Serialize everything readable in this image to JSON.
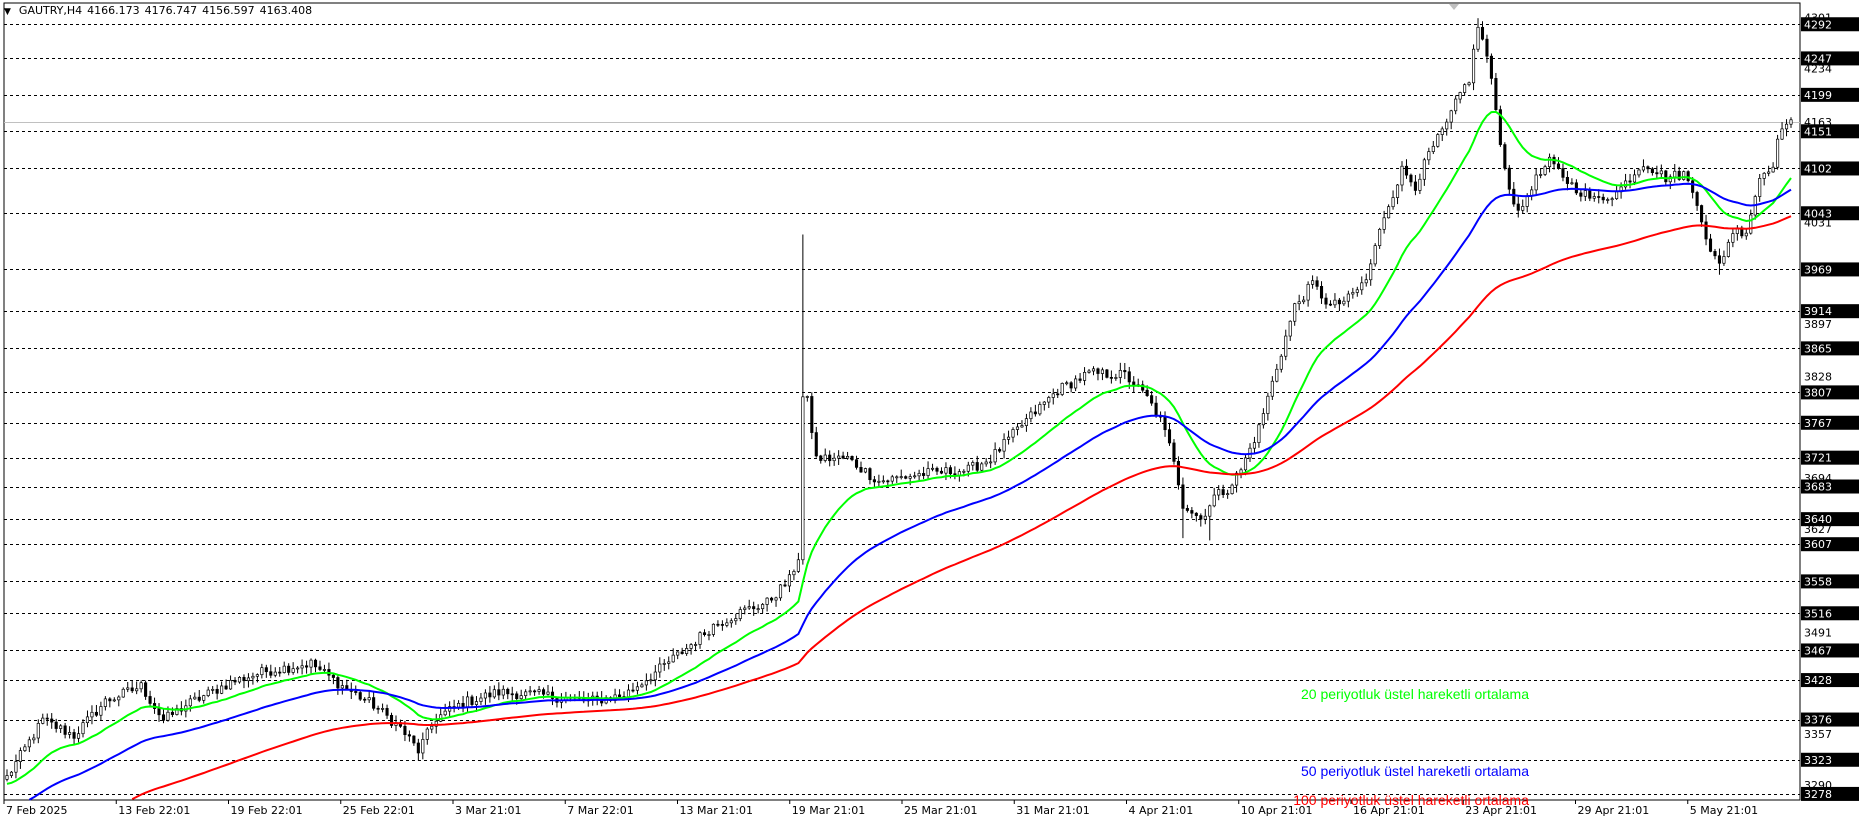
{
  "header": {
    "symbol": "GAUTRY,H4",
    "open": "4166.173",
    "high": "4176.747",
    "low": "4156.597",
    "close": "4163.408"
  },
  "colors": {
    "background": "#ffffff",
    "candle": "#000000",
    "grid": "#000000",
    "ema20": "#00ff00",
    "ema50": "#0000ff",
    "ema100": "#ff0000"
  },
  "chart_data": {
    "type": "candlestick",
    "timeframe": "H4",
    "grid": "dashed horizontal",
    "y_range": [
      3270,
      4320
    ],
    "price_axis_labels": [
      {
        "text": "4301",
        "value": 4301,
        "boxed": false
      },
      {
        "text": "4292",
        "value": 4292,
        "boxed": true
      },
      {
        "text": "4247",
        "value": 4247,
        "boxed": true
      },
      {
        "text": "4234",
        "value": 4234,
        "boxed": false
      },
      {
        "text": "4199",
        "value": 4199,
        "boxed": true
      },
      {
        "text": "4163",
        "value": 4163,
        "boxed": false
      },
      {
        "text": "4151",
        "value": 4151,
        "boxed": true
      },
      {
        "text": "4102",
        "value": 4102,
        "boxed": true
      },
      {
        "text": "4043",
        "value": 4043,
        "boxed": true
      },
      {
        "text": "4031",
        "value": 4031,
        "boxed": false
      },
      {
        "text": "3969",
        "value": 3969,
        "boxed": true
      },
      {
        "text": "3914",
        "value": 3914,
        "boxed": true
      },
      {
        "text": "3897",
        "value": 3897,
        "boxed": false
      },
      {
        "text": "3865",
        "value": 3865,
        "boxed": true
      },
      {
        "text": "3828",
        "value": 3828,
        "boxed": false
      },
      {
        "text": "3807",
        "value": 3807,
        "boxed": true
      },
      {
        "text": "3767",
        "value": 3767,
        "boxed": true
      },
      {
        "text": "3721",
        "value": 3721,
        "boxed": true
      },
      {
        "text": "3694",
        "value": 3694,
        "boxed": false
      },
      {
        "text": "3683",
        "value": 3683,
        "boxed": true
      },
      {
        "text": "3640",
        "value": 3640,
        "boxed": true
      },
      {
        "text": "3627",
        "value": 3627,
        "boxed": false
      },
      {
        "text": "3607",
        "value": 3607,
        "boxed": true
      },
      {
        "text": "3558",
        "value": 3558,
        "boxed": true
      },
      {
        "text": "3516",
        "value": 3516,
        "boxed": true
      },
      {
        "text": "3491",
        "value": 3491,
        "boxed": false
      },
      {
        "text": "3467",
        "value": 3467,
        "boxed": true
      },
      {
        "text": "3428",
        "value": 3428,
        "boxed": true
      },
      {
        "text": "3376",
        "value": 3376,
        "boxed": true
      },
      {
        "text": "3357",
        "value": 3357,
        "boxed": false
      },
      {
        "text": "3323",
        "value": 3323,
        "boxed": true
      },
      {
        "text": "3290",
        "value": 3290,
        "boxed": false
      },
      {
        "text": "3278",
        "value": 3278,
        "boxed": true
      }
    ],
    "level_lines": [
      4292,
      4247,
      4199,
      4151,
      4102,
      4043,
      3969,
      3914,
      3865,
      3807,
      3767,
      3721,
      3683,
      3640,
      3607,
      3558,
      3516,
      3467,
      3428,
      3376,
      3323,
      3278
    ],
    "current_price_line": 4163,
    "x_tick_labels": [
      "7 Feb 2025",
      "13 Feb 22:01",
      "19 Feb 22:01",
      "25 Feb 22:01",
      "3 Mar 21:01",
      "7 Mar 22:01",
      "13 Mar 21:01",
      "19 Mar 21:01",
      "25 Mar 21:01",
      "31 Mar 21:01",
      "4 Apr 21:01",
      "10 Apr 21:01",
      "16 Apr 21:01",
      "23 Apr 21:01",
      "29 Apr 21:01",
      "5 May 21:01"
    ],
    "price_path_anchors": [
      [
        0,
        3300
      ],
      [
        8,
        3375
      ],
      [
        15,
        3355
      ],
      [
        22,
        3400
      ],
      [
        30,
        3420
      ],
      [
        35,
        3375
      ],
      [
        40,
        3395
      ],
      [
        50,
        3425
      ],
      [
        58,
        3440
      ],
      [
        68,
        3450
      ],
      [
        75,
        3420
      ],
      [
        82,
        3395
      ],
      [
        88,
        3365
      ],
      [
        92,
        3335
      ],
      [
        96,
        3378
      ],
      [
        102,
        3398
      ],
      [
        110,
        3412
      ],
      [
        120,
        3408
      ],
      [
        130,
        3400
      ],
      [
        138,
        3408
      ],
      [
        145,
        3438
      ],
      [
        152,
        3470
      ],
      [
        158,
        3500
      ],
      [
        165,
        3520
      ],
      [
        170,
        3530
      ],
      [
        175,
        3560
      ],
      [
        177,
        3590
      ],
      [
        178,
        3800
      ],
      [
        179,
        3795
      ],
      [
        181,
        3720
      ],
      [
        188,
        3720
      ],
      [
        195,
        3690
      ],
      [
        205,
        3700
      ],
      [
        215,
        3705
      ],
      [
        220,
        3720
      ],
      [
        228,
        3770
      ],
      [
        235,
        3810
      ],
      [
        242,
        3832
      ],
      [
        250,
        3830
      ],
      [
        255,
        3800
      ],
      [
        258,
        3770
      ],
      [
        261,
        3720
      ],
      [
        263,
        3660
      ],
      [
        267,
        3640
      ],
      [
        270,
        3670
      ],
      [
        273,
        3680
      ],
      [
        276,
        3705
      ],
      [
        280,
        3760
      ],
      [
        284,
        3840
      ],
      [
        288,
        3920
      ],
      [
        292,
        3950
      ],
      [
        296,
        3920
      ],
      [
        300,
        3930
      ],
      [
        304,
        3955
      ],
      [
        308,
        4040
      ],
      [
        312,
        4100
      ],
      [
        315,
        4080
      ],
      [
        318,
        4120
      ],
      [
        322,
        4160
      ],
      [
        325,
        4200
      ],
      [
        327,
        4220
      ],
      [
        329,
        4290
      ],
      [
        331,
        4250
      ],
      [
        333,
        4180
      ],
      [
        335,
        4100
      ],
      [
        338,
        4040
      ],
      [
        341,
        4080
      ],
      [
        345,
        4110
      ],
      [
        350,
        4080
      ],
      [
        355,
        4060
      ],
      [
        360,
        4070
      ],
      [
        366,
        4110
      ],
      [
        371,
        4090
      ],
      [
        375,
        4095
      ],
      [
        378,
        4060
      ],
      [
        381,
        3990
      ],
      [
        383,
        3975
      ],
      [
        386,
        4020
      ],
      [
        389,
        4020
      ],
      [
        392,
        4090
      ],
      [
        395,
        4110
      ],
      [
        397,
        4160
      ]
    ],
    "series": [
      {
        "name": "20 periyotluk üstel hareketli ortalama",
        "type": "ema",
        "period": 20,
        "color": "#00ff00"
      },
      {
        "name": "50 periyotluk üstel hareketli ortalama",
        "type": "ema",
        "period": 50,
        "color": "#0000ff"
      },
      {
        "name": "100 periyotluk üstel hareketli ortalama",
        "type": "ema",
        "period": 100,
        "color": "#ff0000"
      }
    ]
  },
  "legend": {
    "ema20": "20 periyotluk üstel hareketli ortalama",
    "ema50": "50 periyotluk üstel hareketli ortalama",
    "ema100": "100 periyotluk üstel hareketli ortalama"
  }
}
